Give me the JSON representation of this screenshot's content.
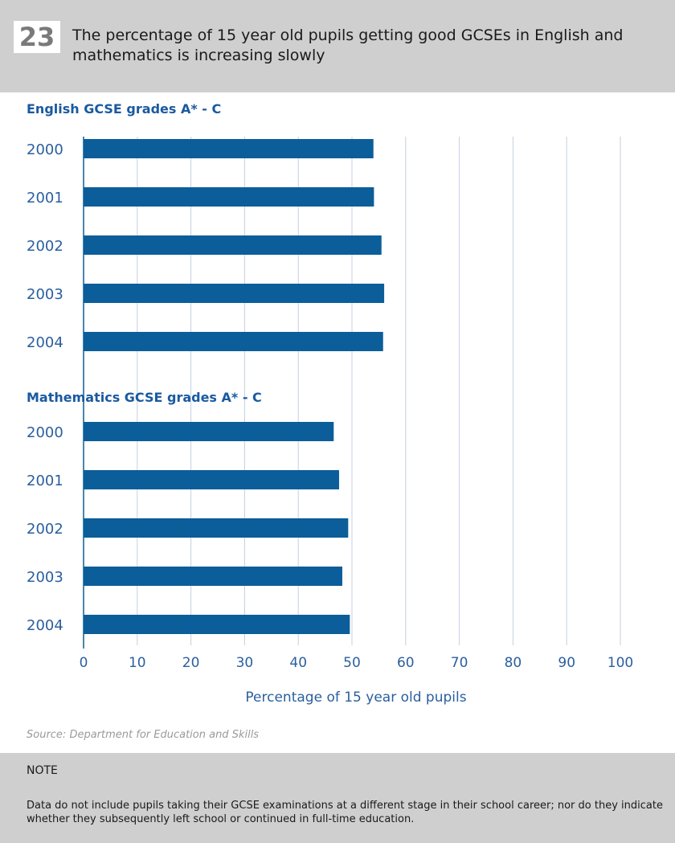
{
  "header": {
    "number": "23",
    "title": "The percentage of 15 year old pupils getting good GCSEs in English and mathematics is increasing slowly"
  },
  "colors": {
    "bar": "#0b5e99",
    "grid": "#c5cfe0",
    "text": "#2a5f9e",
    "panel": "#cfcfcf"
  },
  "chart_data": {
    "type": "bar",
    "orientation": "horizontal",
    "xlabel": "Percentage of 15 year old pupils",
    "xlim": [
      0,
      100
    ],
    "xticks": [
      0,
      10,
      20,
      30,
      40,
      50,
      60,
      70,
      80,
      90,
      100
    ],
    "grid": true,
    "panels": [
      {
        "title": "English GCSE grades A* - C",
        "categories": [
          "2000",
          "2001",
          "2002",
          "2003",
          "2004"
        ],
        "values": [
          54,
          54.1,
          55.5,
          56,
          55.8
        ]
      },
      {
        "title": "Mathematics GCSE grades A* - C",
        "categories": [
          "2000",
          "2001",
          "2002",
          "2003",
          "2004"
        ],
        "values": [
          46.6,
          47.6,
          49.3,
          48.2,
          49.6
        ]
      }
    ]
  },
  "source": "Source: Department for Education and Skills",
  "note": {
    "label": "NOTE",
    "text": "Data do not include pupils taking their GCSE examinations at a different stage in their school career; nor do they indicate whether they subsequently left school or continued in full-time education."
  }
}
